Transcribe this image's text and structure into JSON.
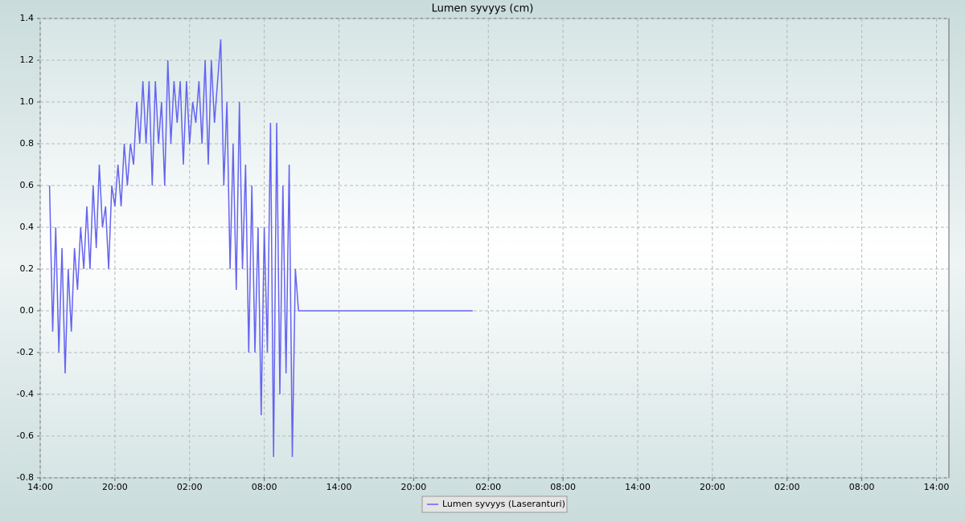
{
  "chart_data": {
    "type": "line",
    "title": "Lumen syvyys (cm)",
    "x": [
      0.75,
      1.0,
      1.25,
      1.5,
      1.75,
      2.0,
      2.25,
      2.5,
      2.75,
      3.0,
      3.25,
      3.5,
      3.75,
      4.0,
      4.25,
      4.5,
      4.75,
      5.0,
      5.25,
      5.5,
      5.75,
      6.0,
      6.25,
      6.5,
      6.75,
      7.0,
      7.25,
      7.5,
      7.75,
      8.0,
      8.25,
      8.5,
      8.75,
      9.0,
      9.25,
      9.5,
      9.75,
      10.0,
      10.25,
      10.5,
      10.75,
      11.0,
      11.25,
      11.5,
      11.75,
      12.0,
      12.25,
      12.5,
      12.75,
      13.0,
      13.25,
      13.5,
      13.75,
      14.0,
      14.25,
      14.5,
      14.75,
      15.0,
      15.25,
      15.5,
      15.75,
      16.0,
      16.25,
      16.5,
      16.75,
      17.0,
      17.25,
      17.5,
      17.75,
      18.0,
      18.25,
      18.5,
      18.75,
      19.0,
      19.25,
      19.5,
      19.75,
      20.0,
      20.25,
      20.5,
      20.75,
      34.75
    ],
    "series": [
      {
        "name": "Lumen syvyys (Laseranturi)",
        "color": "#6464f0",
        "values": [
          0.6,
          -0.1,
          0.4,
          -0.2,
          0.3,
          -0.3,
          0.2,
          -0.1,
          0.3,
          0.1,
          0.4,
          0.2,
          0.5,
          0.2,
          0.6,
          0.3,
          0.7,
          0.4,
          0.5,
          0.2,
          0.6,
          0.5,
          0.7,
          0.5,
          0.8,
          0.6,
          0.8,
          0.7,
          1.0,
          0.8,
          1.1,
          0.8,
          1.1,
          0.6,
          1.1,
          0.8,
          1.0,
          0.6,
          1.2,
          0.8,
          1.1,
          0.9,
          1.1,
          0.7,
          1.1,
          0.8,
          1.0,
          0.9,
          1.1,
          0.8,
          1.2,
          0.7,
          1.2,
          0.9,
          1.1,
          1.3,
          0.6,
          1.0,
          0.2,
          0.8,
          0.1,
          1.0,
          0.2,
          0.7,
          -0.2,
          0.6,
          -0.2,
          0.4,
          -0.5,
          0.4,
          -0.2,
          0.9,
          -0.7,
          0.9,
          -0.4,
          0.6,
          -0.3,
          0.7,
          -0.7,
          0.2,
          0.0,
          0.0
        ]
      }
    ],
    "xlim": [
      0,
      73
    ],
    "xticks": [
      {
        "value": 0,
        "label": "14:00"
      },
      {
        "value": 6,
        "label": "20:00"
      },
      {
        "value": 12,
        "label": "02:00"
      },
      {
        "value": 18,
        "label": "08:00"
      },
      {
        "value": 24,
        "label": "14:00"
      },
      {
        "value": 30,
        "label": "20:00"
      },
      {
        "value": 36,
        "label": "02:00"
      },
      {
        "value": 42,
        "label": "08:00"
      },
      {
        "value": 48,
        "label": "14:00"
      },
      {
        "value": 54,
        "label": "20:00"
      },
      {
        "value": 60,
        "label": "02:00"
      },
      {
        "value": 66,
        "label": "08:00"
      },
      {
        "value": 72,
        "label": "14:00"
      }
    ],
    "ylim": [
      -0.8,
      1.4
    ],
    "yticks": [
      -0.8,
      -0.6,
      -0.4,
      -0.2,
      {
        "value": 0,
        "label": "0.0"
      },
      0.2,
      0.4,
      0.6,
      0.8,
      {
        "value": 1,
        "label": "1.0"
      },
      1.2,
      1.4
    ],
    "grid": true,
    "legend": "bottom"
  }
}
